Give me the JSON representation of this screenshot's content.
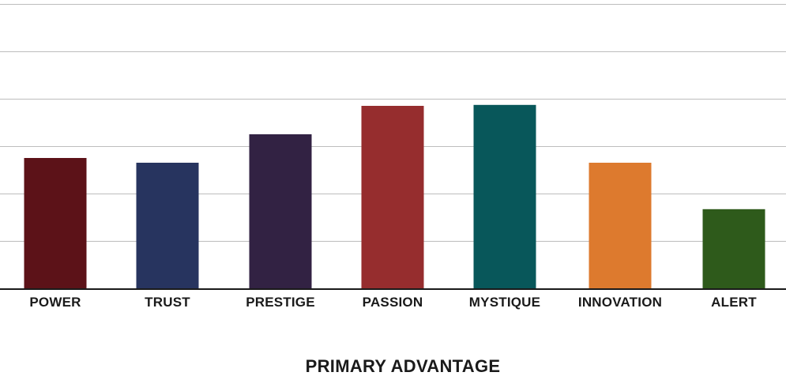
{
  "chart_data": {
    "type": "bar",
    "title": "",
    "xlabel": "PRIMARY ADVANTAGE",
    "ylabel": "",
    "categories": [
      "POWER",
      "TRUST",
      "PRESTIGE",
      "PASSION",
      "MYSTIQUE",
      "INNOVATION",
      "ALERT"
    ],
    "values": [
      27.5,
      26.5,
      32.5,
      38.5,
      38.7,
      26.5,
      16.7
    ],
    "colors": [
      "#5c1218",
      "#27345f",
      "#322243",
      "#962d2e",
      "#08575a",
      "#dd7a2e",
      "#2e5a1b"
    ],
    "ylim": [
      0,
      60
    ],
    "grid": true,
    "legend": "none"
  }
}
